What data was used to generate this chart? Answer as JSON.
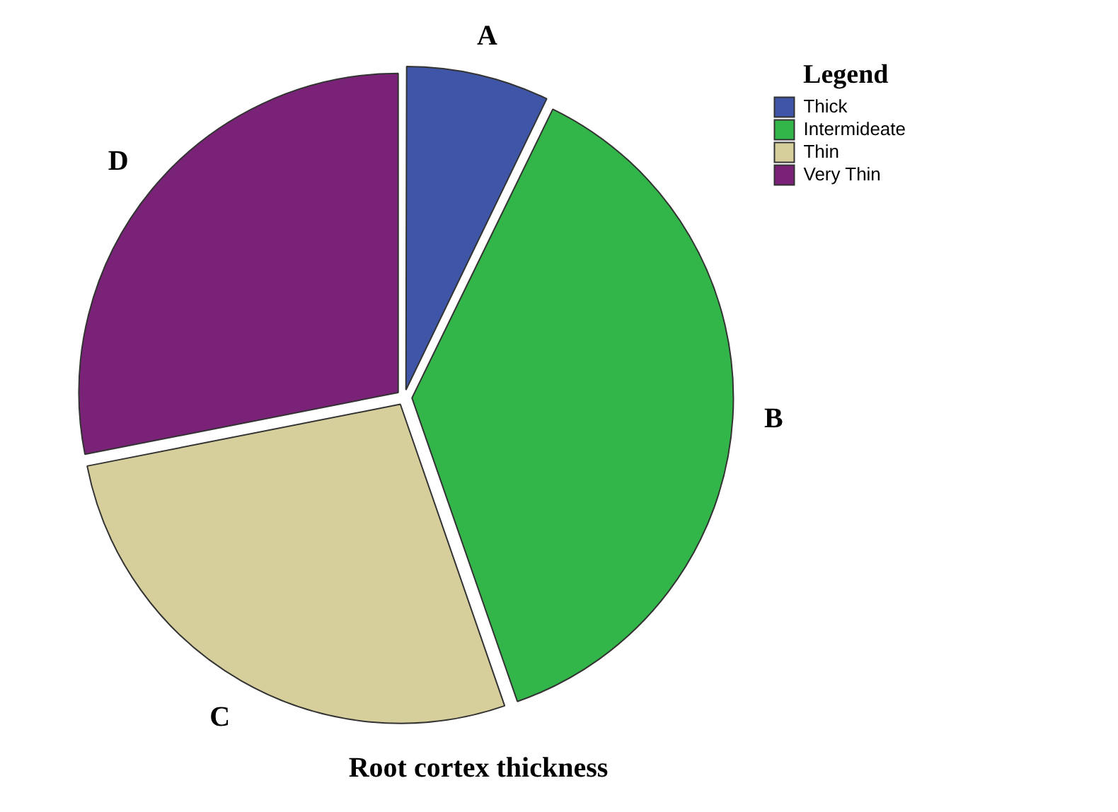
{
  "chart_data": {
    "type": "pie",
    "title": "Root cortex thickness",
    "legend_title": "Legend",
    "legend": "top right",
    "categories": [
      "Thick",
      "Intermideate",
      "Thin",
      "Very Thin"
    ],
    "values": [
      7.2,
      37.5,
      27.2,
      28.1
    ],
    "colors": [
      "#3f56a8",
      "#32b64a",
      "#d6cf9c",
      "#7a2278"
    ],
    "value_labels": [
      "A",
      "B",
      "C",
      "D"
    ]
  }
}
